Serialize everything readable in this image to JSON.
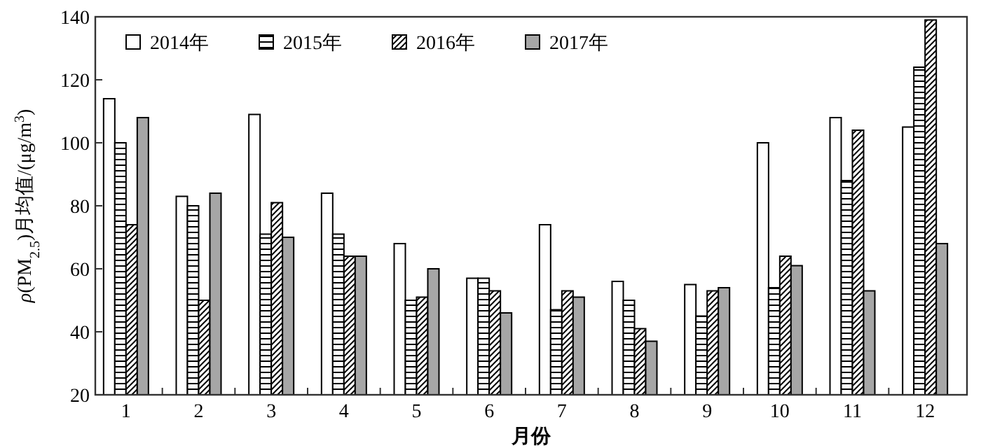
{
  "chart_data": {
    "type": "bar",
    "xlabel": "月份",
    "ylabel": "*ρ*(PM$_{2.5}$)月均值/(μg/m$^{3}$)",
    "categories": [
      "1",
      "2",
      "3",
      "4",
      "5",
      "6",
      "7",
      "8",
      "9",
      "10",
      "11",
      "12"
    ],
    "series": [
      {
        "name": "2014年",
        "color": "#ffffff",
        "values": [
          114,
          83,
          109,
          84,
          68,
          57,
          74,
          56,
          55,
          100,
          108,
          105
        ]
      },
      {
        "name": "2015年",
        "color": "#000000",
        "values": [
          100,
          80,
          71,
          71,
          50,
          57,
          47,
          50,
          45,
          54,
          88,
          124
        ]
      },
      {
        "name": "2016年",
        "color": "#000000",
        "values": [
          74,
          50,
          81,
          64,
          51,
          53,
          53,
          41,
          53,
          64,
          104,
          139
        ]
      },
      {
        "name": "2017年",
        "color": "#a6a6a6",
        "values": [
          108,
          84,
          70,
          64,
          60,
          46,
          51,
          37,
          54,
          61,
          53,
          68
        ]
      }
    ],
    "ylim": [
      20,
      140
    ],
    "yticks": [
      20,
      40,
      60,
      80,
      100,
      120,
      140
    ],
    "legend": "top left",
    "grid": false
  }
}
